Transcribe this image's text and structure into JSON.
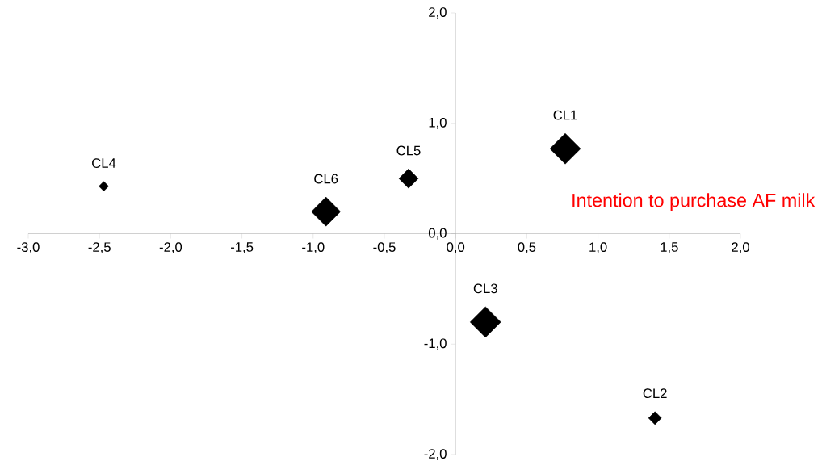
{
  "chart_data": {
    "type": "bubble",
    "marker": "diamond",
    "series": [
      {
        "name": "CL1",
        "color": "#000000",
        "x": [
          0.77
        ],
        "values": [
          0.77
        ],
        "sizes": [
          1
        ]
      },
      {
        "name": "CL2",
        "color": "#000000",
        "x": [
          1.4
        ],
        "values": [
          -1.67
        ],
        "sizes": [
          0.18
        ]
      },
      {
        "name": "CL3",
        "color": "#000000",
        "x": [
          0.21
        ],
        "values": [
          -0.8
        ],
        "sizes": [
          1
        ]
      },
      {
        "name": "CL4",
        "color": "#000000",
        "x": [
          -2.47
        ],
        "values": [
          0.43
        ],
        "sizes": [
          0.1
        ]
      },
      {
        "name": "CL5",
        "color": "#000000",
        "x": [
          -0.33
        ],
        "values": [
          0.5
        ],
        "sizes": [
          0.4
        ]
      },
      {
        "name": "CL6",
        "color": "#000000",
        "x": [
          -0.91
        ],
        "values": [
          0.2
        ],
        "sizes": [
          0.9
        ]
      }
    ],
    "xlim": [
      -3,
      2
    ],
    "ylim": [
      -2,
      2
    ],
    "xticks": [
      {
        "value": -3,
        "label": "-3,0"
      },
      {
        "value": -2.5,
        "label": "-2,5"
      },
      {
        "value": -2,
        "label": "-2,0"
      },
      {
        "value": -1.5,
        "label": "-1,5"
      },
      {
        "value": -1,
        "label": "-1,0"
      },
      {
        "value": -0.5,
        "label": "-0,5"
      },
      {
        "value": 0,
        "label": "0,0"
      },
      {
        "value": 0.5,
        "label": "0,5"
      },
      {
        "value": 1,
        "label": "1,0"
      },
      {
        "value": 1.5,
        "label": "1,5"
      },
      {
        "value": 2,
        "label": "2,0"
      }
    ],
    "yticks": [
      {
        "value": -2,
        "label": "-2,0"
      },
      {
        "value": -1,
        "label": "-1,0"
      },
      {
        "value": 0,
        "label": "0,0"
      },
      {
        "value": 1,
        "label": "1,0"
      },
      {
        "value": 2,
        "label": "2,0"
      }
    ],
    "annotations": [
      "Intention to purchase AF milk"
    ],
    "grid": false,
    "legend": false
  }
}
